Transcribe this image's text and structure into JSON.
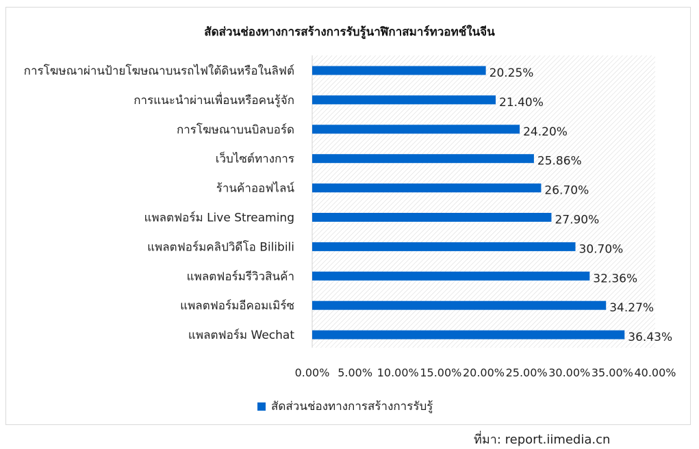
{
  "chart_data": {
    "type": "bar",
    "orientation": "horizontal",
    "title": "สัดส่วนช่องทางการสร้างการรับรู้นาฬิกาสมาร์ทวอทช์ในจีน",
    "categories": [
      "การโฆษณาผ่านป้ายโฆษณาบนรถไฟใต้ดินหรือในลิฟต์",
      "การแนะนำผ่านเพื่อนหรือคนรู้จัก",
      "การโฆษณาบนบิลบอร์ด",
      "เว็บไซต์ทางการ",
      "ร้านค้าออฟไลน์",
      "แพลตฟอร์ม Live Streaming",
      "แพลตฟอร์มคลิปวิดีโอ Bilibili",
      "แพลตฟอร์มรีวิวสินค้า",
      "แพลตฟอร์มอีคอมเมิร์ซ",
      "แพลตฟอร์ม Wechat"
    ],
    "series": [
      {
        "name": "สัดส่วนช่องทางการสร้างการรับรู้",
        "values": [
          20.25,
          21.4,
          24.2,
          25.86,
          26.7,
          27.9,
          30.7,
          32.36,
          34.27,
          36.43
        ],
        "labels": [
          "20.25%",
          "21.40%",
          "24.20%",
          "25.86%",
          "26.70%",
          "27.90%",
          "30.70%",
          "32.36%",
          "34.27%",
          "36.43%"
        ]
      }
    ],
    "xlim": [
      0,
      40
    ],
    "xticks": [
      "0.00%",
      "5.00%",
      "10.00%",
      "15.00%",
      "20.00%",
      "25.00%",
      "30.00%",
      "35.00%",
      "40.00%"
    ],
    "bar_color": "#0066cc",
    "legend_position": "bottom",
    "grid": false
  },
  "source_note": "ที่มา: report.iimedia.cn"
}
